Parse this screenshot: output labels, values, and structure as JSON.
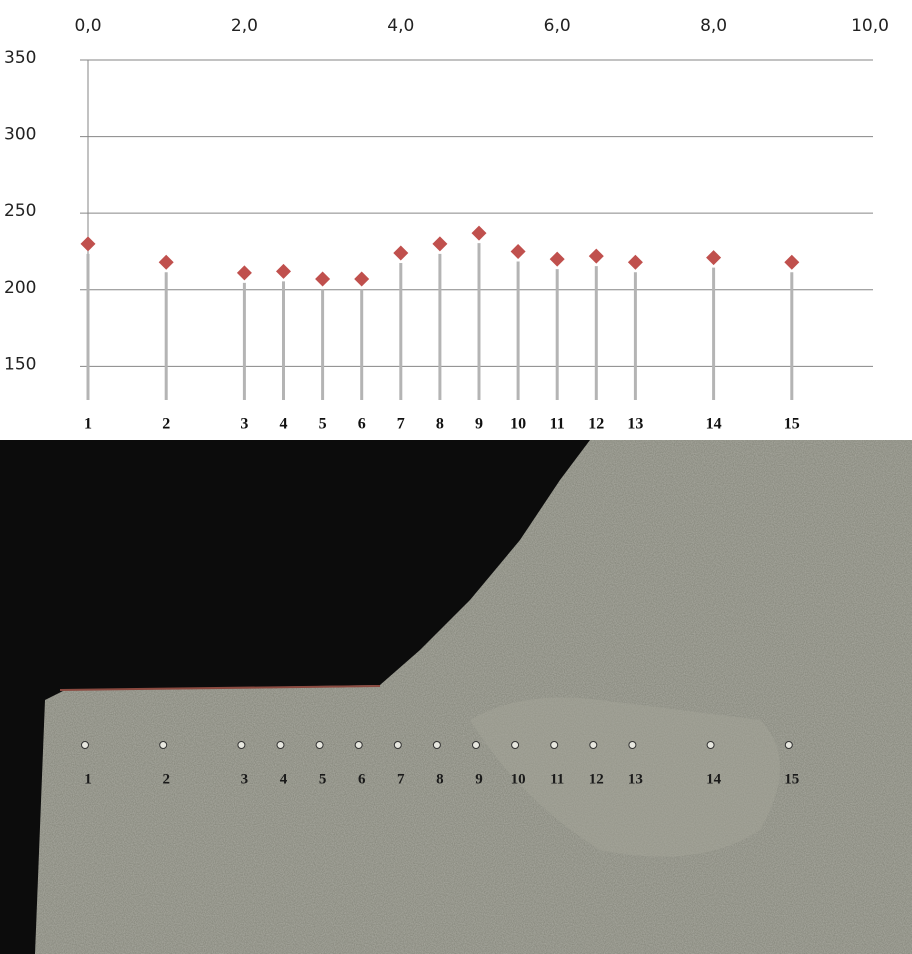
{
  "chart_data": {
    "type": "scatter",
    "x": [
      0.0,
      1.0,
      2.0,
      2.5,
      3.0,
      3.5,
      4.0,
      4.5,
      5.0,
      5.5,
      6.0,
      6.5,
      7.0,
      8.0,
      9.0
    ],
    "series": [
      {
        "color": "#c0504d",
        "values": [
          230,
          218,
          211,
          212,
          207,
          207,
          224,
          230,
          237,
          225,
          220,
          222,
          218,
          221,
          218
        ]
      }
    ],
    "point_labels": [
      "1",
      "2",
      "3",
      "4",
      "5",
      "6",
      "7",
      "8",
      "9",
      "10",
      "11",
      "12",
      "13",
      "14",
      "15"
    ],
    "xlim": [
      0,
      10
    ],
    "xticks": [
      {
        "value": 0,
        "label": "0,0"
      },
      {
        "value": 2,
        "label": "2,0"
      },
      {
        "value": 4,
        "label": "4,0"
      },
      {
        "value": 6,
        "label": "6,0"
      },
      {
        "value": 8,
        "label": "8,0"
      },
      {
        "value": 10,
        "label": "10,0"
      }
    ],
    "ylim": [
      130,
      350
    ],
    "yticks": [
      150,
      200,
      250,
      300,
      350
    ],
    "grid": true,
    "drop_lines": true
  }
}
